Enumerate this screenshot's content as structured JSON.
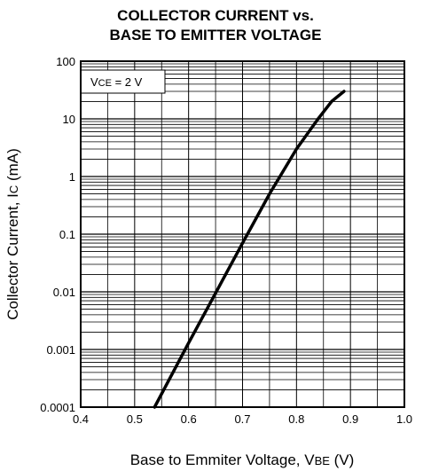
{
  "chart_data": {
    "type": "line",
    "title_line1": "COLLECTOR CURRENT vs.",
    "title_line2": "BASE TO EMITTER VOLTAGE",
    "xlabel_main": "Base to Emmiter Voltage, V",
    "xlabel_sub": "BE",
    "xlabel_unit": " (V)",
    "ylabel_main": "Collector Current, I",
    "ylabel_sub": "C",
    "ylabel_unit": " (mA)",
    "annotation": {
      "main": "V",
      "sub": "CE",
      "rest": " = 2 V"
    },
    "xlim": [
      0.4,
      1.0
    ],
    "ylim": [
      0.0001,
      100
    ],
    "yscale": "log",
    "grid": true,
    "x_ticks": [
      "0.4",
      "0.5",
      "0.6",
      "0.7",
      "0.8",
      "0.9",
      "1.0"
    ],
    "y_ticks": [
      "0.0001",
      "0.001",
      "0.01",
      "0.1",
      "1",
      "10",
      "100"
    ],
    "series": [
      {
        "color": "#000000",
        "x": [
          0.537,
          0.6,
          0.65,
          0.7,
          0.75,
          0.8,
          0.84,
          0.865,
          0.888
        ],
        "y": [
          0.0001,
          0.0013,
          0.0095,
          0.07,
          0.5,
          3.0,
          10,
          20,
          30
        ]
      }
    ]
  }
}
